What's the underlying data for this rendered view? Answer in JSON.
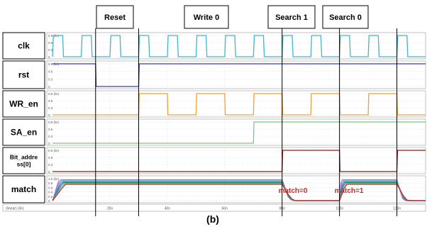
{
  "figure_label": "(b)",
  "phases": [
    {
      "label": "Reset"
    },
    {
      "label": "Write 0"
    },
    {
      "label": "Search 1"
    },
    {
      "label": "Search 0"
    }
  ],
  "annotations": [
    {
      "text": "match=0",
      "color": "#c62828"
    },
    {
      "text": "match=1",
      "color": "#c62828"
    }
  ],
  "x_axis": {
    "unit_label": "(linear) (lin)",
    "ticks": [
      "20n",
      "40n",
      "60n",
      "80n",
      "100n",
      "120n"
    ]
  },
  "colors": {
    "clk": "#3fb7c9",
    "rst": "#3a3aa8",
    "wr_en": "#f0a030",
    "sa_en": "#7fc47f",
    "bit_address": "#8b1a1a",
    "match": [
      "#d64fd6",
      "#3fb7c9",
      "#2a9d8f",
      "#5a5acd",
      "#7fc47f",
      "#c62828"
    ],
    "phase_line": "#000000",
    "grid": "#dcdcdc"
  },
  "chart_data": {
    "type": "line",
    "title": "",
    "xlabel": "",
    "x_unit": "ns",
    "xlim": [
      -2,
      130
    ],
    "signals": [
      {
        "key": "clk",
        "label": "clk",
        "y_ticks": [
          "0.9 (lin)",
          "0.6",
          "0.3",
          "0"
        ],
        "series": [
          {
            "name": "clk",
            "points": [
              [
                0,
                0
              ],
              [
                0.3,
                0.9
              ],
              [
                3.5,
                0.9
              ],
              [
                3.8,
                0
              ],
              [
                10,
                0
              ],
              [
                10.3,
                0.9
              ],
              [
                13.5,
                0.9
              ],
              [
                13.8,
                0
              ],
              [
                20,
                0
              ],
              [
                20.3,
                0.9
              ],
              [
                23.5,
                0.9
              ],
              [
                23.8,
                0
              ],
              [
                30,
                0
              ],
              [
                30.3,
                0.9
              ],
              [
                33.5,
                0.9
              ],
              [
                33.8,
                0
              ],
              [
                40,
                0
              ],
              [
                40.3,
                0.9
              ],
              [
                43.5,
                0.9
              ],
              [
                43.8,
                0
              ],
              [
                50,
                0
              ],
              [
                50.3,
                0.9
              ],
              [
                53.5,
                0.9
              ],
              [
                53.8,
                0
              ],
              [
                60,
                0
              ],
              [
                60.3,
                0.9
              ],
              [
                63.5,
                0.9
              ],
              [
                63.8,
                0
              ],
              [
                70,
                0
              ],
              [
                70.3,
                0.9
              ],
              [
                73.5,
                0.9
              ],
              [
                73.8,
                0
              ],
              [
                80,
                0
              ],
              [
                80.3,
                0.9
              ],
              [
                83.5,
                0.9
              ],
              [
                83.8,
                0
              ],
              [
                90,
                0
              ],
              [
                90.3,
                0.9
              ],
              [
                93.5,
                0.9
              ],
              [
                93.8,
                0
              ],
              [
                100,
                0
              ],
              [
                100.3,
                0.9
              ],
              [
                103.5,
                0.9
              ],
              [
                103.8,
                0
              ],
              [
                110,
                0
              ],
              [
                110.3,
                0.9
              ],
              [
                113.5,
                0.9
              ],
              [
                113.8,
                0
              ],
              [
                120,
                0
              ],
              [
                120.3,
                0.9
              ],
              [
                123.5,
                0.9
              ],
              [
                123.8,
                0
              ],
              [
                130,
                0
              ]
            ]
          }
        ]
      },
      {
        "key": "rst",
        "label": "rst",
        "y_ticks": [
          "0.9 (lin)",
          "0.6",
          "0.3",
          "0"
        ],
        "series": [
          {
            "name": "rst",
            "points": [
              [
                0,
                0.9
              ],
              [
                15,
                0.9
              ],
              [
                15.2,
                0
              ],
              [
                30,
                0
              ],
              [
                30.2,
                0.9
              ],
              [
                130,
                0.9
              ]
            ]
          }
        ]
      },
      {
        "key": "wr_en",
        "label": "WR_en",
        "y_ticks": [
          "0.9 (lin)",
          "0.6",
          "0.3",
          "0"
        ],
        "series": [
          {
            "name": "WR_en",
            "points": [
              [
                0,
                0
              ],
              [
                30,
                0
              ],
              [
                30.2,
                0.9
              ],
              [
                40,
                0.9
              ],
              [
                40.2,
                0
              ],
              [
                50,
                0
              ],
              [
                50.2,
                0.9
              ],
              [
                60,
                0.9
              ],
              [
                60.2,
                0
              ],
              [
                70,
                0
              ],
              [
                70.2,
                0.9
              ],
              [
                80,
                0.9
              ],
              [
                80.2,
                0
              ],
              [
                90,
                0
              ],
              [
                90.2,
                0.9
              ],
              [
                100,
                0.9
              ],
              [
                100.2,
                0
              ],
              [
                110,
                0
              ],
              [
                110.2,
                0.9
              ],
              [
                120,
                0.9
              ],
              [
                120.2,
                0
              ],
              [
                130,
                0
              ]
            ]
          }
        ]
      },
      {
        "key": "sa_en",
        "label": "SA_en",
        "y_ticks": [
          "0.9 (lin)",
          "0.6",
          "0.3",
          "0"
        ],
        "series": [
          {
            "name": "SA_en",
            "points": [
              [
                0,
                0
              ],
              [
                70,
                0
              ],
              [
                70.2,
                0.9
              ],
              [
                130,
                0.9
              ]
            ]
          }
        ]
      },
      {
        "key": "bit_address",
        "label": "Bit_addre ss[0]",
        "y_ticks": [
          "0.9 (lin)",
          "0.6",
          "0.3",
          "0"
        ],
        "series": [
          {
            "name": "Bit_address[0]",
            "points": [
              [
                0,
                0
              ],
              [
                80,
                0
              ],
              [
                80.2,
                0.9
              ],
              [
                100,
                0.9
              ],
              [
                100.2,
                0
              ],
              [
                120,
                0
              ],
              [
                120.2,
                0.9
              ],
              [
                130,
                0.9
              ]
            ]
          }
        ]
      },
      {
        "key": "match",
        "label": "match",
        "y_ticks": [
          "1.0 (lin)",
          "0.8",
          "0.6",
          "0.4",
          "0.2",
          "0"
        ],
        "series": [
          {
            "name": "",
            "points": [
              [
                0,
                0
              ],
              [
                2,
                0.85
              ],
              [
                3,
                0.95
              ],
              [
                80,
                0.95
              ],
              [
                81,
                0.6
              ],
              [
                82,
                0.2
              ],
              [
                83,
                0.05
              ],
              [
                84,
                0
              ],
              [
                100,
                0
              ],
              [
                100.5,
                0.8
              ],
              [
                101,
                0.95
              ],
              [
                120,
                0.95
              ],
              [
                121,
                0.5
              ],
              [
                122,
                0.1
              ],
              [
                123,
                0
              ],
              [
                130,
                0
              ]
            ]
          },
          {
            "name": "",
            "points": [
              [
                0,
                0
              ],
              [
                2.3,
                0.8
              ],
              [
                3.3,
                0.9
              ],
              [
                80,
                0.9
              ],
              [
                81.2,
                0.5
              ],
              [
                82.3,
                0.15
              ],
              [
                83.5,
                0.03
              ],
              [
                84.5,
                0
              ],
              [
                100,
                0
              ],
              [
                100.8,
                0.75
              ],
              [
                101.4,
                0.9
              ],
              [
                120,
                0.9
              ],
              [
                121.3,
                0.45
              ],
              [
                122.3,
                0.08
              ],
              [
                123.3,
                0
              ],
              [
                130,
                0
              ]
            ]
          },
          {
            "name": "",
            "points": [
              [
                0,
                0
              ],
              [
                2.6,
                0.75
              ],
              [
                3.6,
                0.85
              ],
              [
                80,
                0.85
              ],
              [
                81.4,
                0.45
              ],
              [
                82.6,
                0.12
              ],
              [
                83.8,
                0.02
              ],
              [
                85,
                0
              ],
              [
                100,
                0
              ],
              [
                101,
                0.7
              ],
              [
                101.7,
                0.85
              ],
              [
                120,
                0.85
              ],
              [
                121.5,
                0.4
              ],
              [
                122.6,
                0.06
              ],
              [
                123.6,
                0
              ],
              [
                130,
                0
              ]
            ]
          },
          {
            "name": "",
            "points": [
              [
                0,
                0
              ],
              [
                2.9,
                0.7
              ],
              [
                3.9,
                0.82
              ],
              [
                80,
                0.82
              ],
              [
                81.6,
                0.4
              ],
              [
                82.9,
                0.1
              ],
              [
                84.1,
                0.01
              ],
              [
                85.5,
                0
              ],
              [
                100,
                0
              ],
              [
                101.2,
                0.65
              ],
              [
                102,
                0.82
              ],
              [
                120,
                0.82
              ],
              [
                121.7,
                0.35
              ],
              [
                122.9,
                0.05
              ],
              [
                124,
                0
              ],
              [
                130,
                0
              ]
            ]
          },
          {
            "name": "",
            "points": [
              [
                0,
                0
              ],
              [
                3.2,
                0.65
              ],
              [
                4.2,
                0.78
              ],
              [
                80,
                0.78
              ],
              [
                81.8,
                0.35
              ],
              [
                83.2,
                0.08
              ],
              [
                84.4,
                0.01
              ],
              [
                86,
                0
              ],
              [
                100,
                0
              ],
              [
                101.4,
                0.6
              ],
              [
                102.3,
                0.78
              ],
              [
                120,
                0.78
              ],
              [
                121.9,
                0.3
              ],
              [
                123.2,
                0.04
              ],
              [
                124.4,
                0
              ],
              [
                130,
                0
              ]
            ]
          },
          {
            "name": "",
            "points": [
              [
                0,
                0
              ],
              [
                3.5,
                0.6
              ],
              [
                4.5,
                0.75
              ],
              [
                80,
                0.75
              ],
              [
                82,
                0.3
              ],
              [
                83.5,
                0.06
              ],
              [
                84.7,
                0
              ],
              [
                86.5,
                0
              ],
              [
                100,
                0
              ],
              [
                101.6,
                0.55
              ],
              [
                102.6,
                0.75
              ],
              [
                120,
                0.75
              ],
              [
                122.1,
                0.25
              ],
              [
                123.5,
                0.03
              ],
              [
                124.8,
                0
              ],
              [
                130,
                0
              ]
            ]
          }
        ]
      }
    ]
  }
}
